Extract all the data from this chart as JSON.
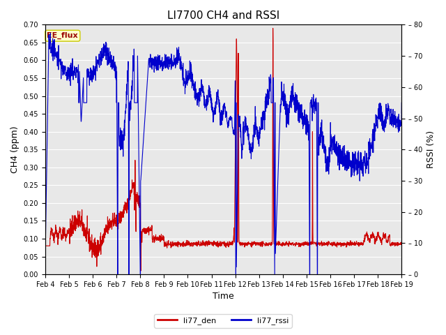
{
  "title": "LI7700 CH4 and RSSI",
  "xlabel": "Time",
  "ylabel_left": "CH4 (ppm)",
  "ylabel_right": "RSSI (%)",
  "ylim_left": [
    0.0,
    0.7
  ],
  "ylim_right": [
    0,
    80
  ],
  "yticks_left": [
    0.0,
    0.05,
    0.1,
    0.15,
    0.2,
    0.25,
    0.3,
    0.35,
    0.4,
    0.45,
    0.5,
    0.55,
    0.6,
    0.65,
    0.7
  ],
  "yticks_right": [
    0,
    10,
    20,
    30,
    40,
    50,
    60,
    70,
    80
  ],
  "fig_bg_color": "#ffffff",
  "plot_bg_color": "#e8e8e8",
  "line_color_red": "#cc0000",
  "line_color_blue": "#0000cc",
  "legend_labels": [
    "li77_den",
    "li77_rssi"
  ],
  "annotation_text": "EE_flux",
  "annotation_bg": "#ffffcc",
  "annotation_border": "#cccc00",
  "x_start": 4,
  "x_end": 19,
  "x_ticks": [
    4,
    5,
    6,
    7,
    8,
    9,
    10,
    11,
    12,
    13,
    14,
    15,
    16,
    17,
    18,
    19
  ],
  "x_tick_labels": [
    "Feb 4",
    "Feb 5",
    "Feb 6",
    "Feb 7",
    "Feb 8",
    "Feb 9",
    "Feb 10",
    "Feb 11",
    "Feb 12",
    "Feb 13",
    "Feb 14",
    "Feb 15",
    "Feb 16",
    "Feb 17",
    "Feb 18",
    "Feb 19"
  ],
  "title_fontsize": 11,
  "label_fontsize": 9,
  "tick_fontsize": 7,
  "linewidth": 0.8
}
